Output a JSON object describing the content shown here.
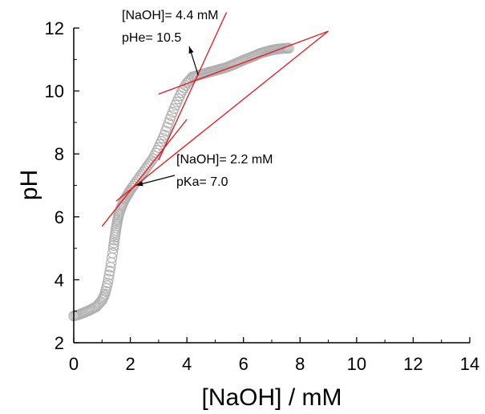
{
  "chart_data": {
    "type": "scatter",
    "title": "",
    "xlabel": "[NaOH] / mM",
    "ylabel": "pH",
    "xlim": [
      0,
      14
    ],
    "ylim": [
      2,
      12
    ],
    "xticks": [
      "0",
      "2",
      "4",
      "6",
      "8",
      "10",
      "12",
      "14"
    ],
    "yticks": [
      "2",
      "4",
      "6",
      "8",
      "10",
      "12"
    ],
    "grid": false,
    "legend": "none",
    "marker_color": "#b0b0b0",
    "tangent_color": "#e8141b",
    "series": [
      {
        "x": [
          0.0,
          0.2,
          0.4,
          0.6,
          0.8,
          1.0,
          1.1,
          1.2,
          1.3,
          1.4,
          1.45,
          1.5,
          1.55,
          1.6,
          1.7,
          1.8,
          1.9,
          2.0,
          2.2,
          2.4,
          2.6,
          2.8,
          3.0,
          3.2,
          3.4,
          3.6,
          3.8,
          4.0,
          4.2,
          4.4,
          4.6,
          4.8,
          5.0,
          5.2,
          5.4,
          5.6,
          5.8,
          6.0,
          6.2,
          6.4,
          6.6,
          6.8,
          7.0,
          7.2,
          7.4,
          7.6
        ],
        "y": [
          2.85,
          2.9,
          2.97,
          3.05,
          3.15,
          3.35,
          3.55,
          3.9,
          4.4,
          5.0,
          5.35,
          5.65,
          5.9,
          6.1,
          6.35,
          6.55,
          6.7,
          6.85,
          7.1,
          7.35,
          7.6,
          7.85,
          8.2,
          8.6,
          9.1,
          9.55,
          9.95,
          10.25,
          10.45,
          10.5,
          10.55,
          10.6,
          10.65,
          10.7,
          10.75,
          10.82,
          10.9,
          10.98,
          11.05,
          11.12,
          11.2,
          11.25,
          11.3,
          11.33,
          11.35,
          11.36
        ]
      }
    ],
    "tangents": [
      {
        "x": [
          1.0,
          4.0
        ],
        "y": [
          5.7,
          9.1
        ]
      },
      {
        "x": [
          1.5,
          9.0
        ],
        "y": [
          6.5,
          11.9
        ]
      },
      {
        "x": [
          3.0,
          5.4
        ],
        "y": [
          7.8,
          12.5
        ]
      },
      {
        "x": [
          3.0,
          9.0
        ],
        "y": [
          9.9,
          11.9
        ]
      }
    ],
    "annotations": [
      {
        "lines": [
          "[NaOH]= 4.4 mM",
          "pHe= 10.5"
        ],
        "arrow_to": [
          4.4,
          10.5
        ]
      },
      {
        "lines": [
          "[NaOH]= 2.2 mM",
          "pKa= 7.0"
        ],
        "arrow_to": [
          2.2,
          7.0
        ]
      }
    ]
  }
}
